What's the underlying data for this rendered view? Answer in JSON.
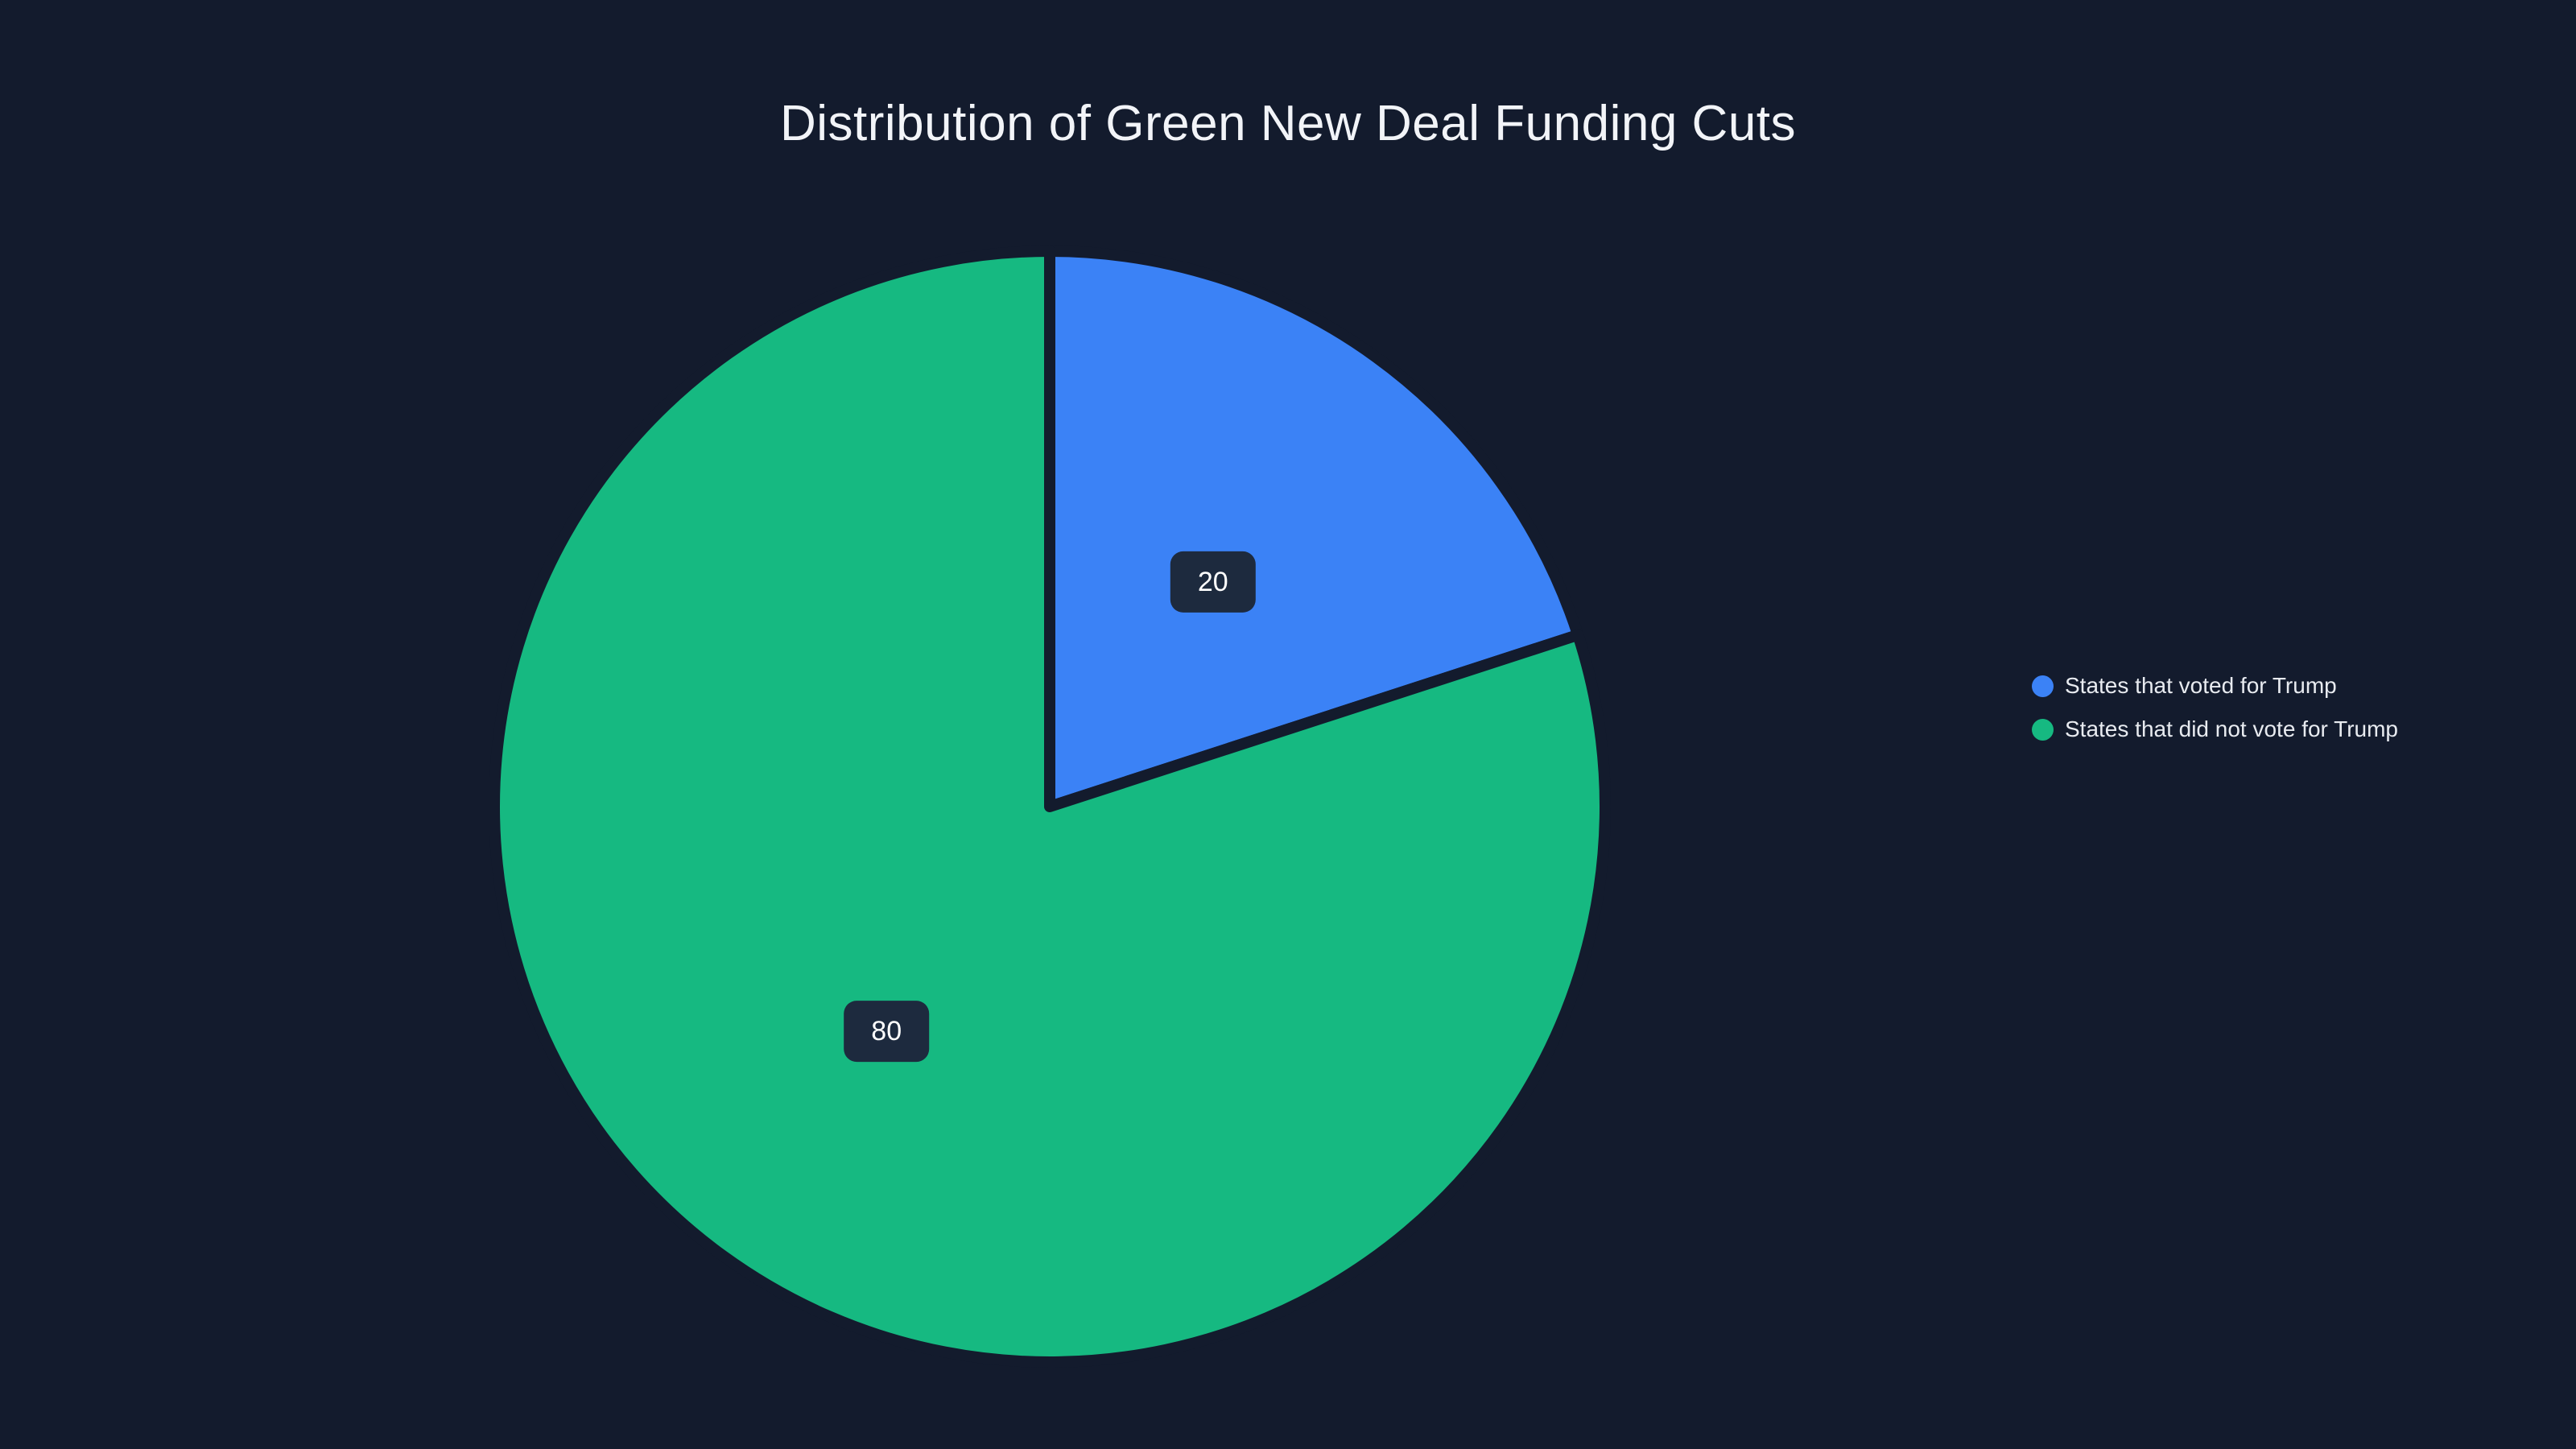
{
  "title": "Distribution of Green New Deal Funding Cuts",
  "colors": {
    "background": "#131b2d",
    "label_box": "#1d2a3e",
    "label_text": "#ffffff",
    "title_text": "#f2f4f8",
    "legend_text": "#e8ebf0"
  },
  "chart_data": {
    "type": "pie",
    "title": "Distribution of Green New Deal Funding Cuts",
    "start_angle_deg": 0,
    "direction": "clockwise",
    "legend_position": "right",
    "slices": [
      {
        "label": "States that voted for Trump",
        "value": 20,
        "color": "#3b82f6"
      },
      {
        "label": "States that did not vote for Trump",
        "value": 80,
        "color": "#16b981"
      }
    ]
  },
  "legend": {
    "items": [
      {
        "label": "States that voted for Trump"
      },
      {
        "label": "States that did not vote for Trump"
      }
    ]
  }
}
